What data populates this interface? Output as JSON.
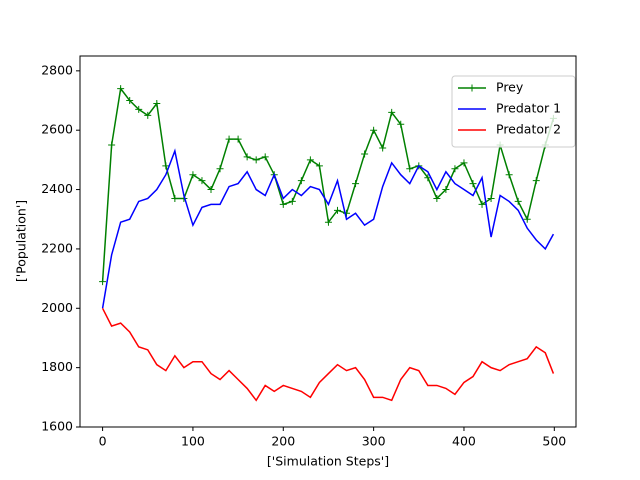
{
  "chart_data": {
    "type": "line",
    "x_label": "['Simulation Steps']",
    "y_label": "['Population']",
    "x": [
      0,
      10,
      20,
      30,
      40,
      50,
      60,
      70,
      80,
      90,
      100,
      110,
      120,
      130,
      140,
      150,
      160,
      170,
      180,
      190,
      200,
      210,
      220,
      230,
      240,
      250,
      260,
      270,
      280,
      290,
      300,
      310,
      320,
      330,
      340,
      350,
      360,
      370,
      380,
      390,
      400,
      410,
      420,
      430,
      440,
      450,
      460,
      470,
      480,
      490,
      499
    ],
    "series": [
      {
        "name": "Prey",
        "color": "#008000",
        "marker": "+",
        "values": [
          2090,
          2550,
          2740,
          2700,
          2670,
          2650,
          2690,
          2480,
          2370,
          2370,
          2450,
          2430,
          2400,
          2470,
          2570,
          2570,
          2510,
          2500,
          2510,
          2450,
          2350,
          2360,
          2430,
          2500,
          2480,
          2290,
          2330,
          2320,
          2420,
          2520,
          2600,
          2540,
          2660,
          2620,
          2470,
          2480,
          2440,
          2370,
          2400,
          2470,
          2490,
          2420,
          2350,
          2370,
          2550,
          2450,
          2360,
          2300,
          2430,
          2550,
          2640
        ]
      },
      {
        "name": "Predator 1",
        "color": "#0000ff",
        "values": [
          2000,
          2180,
          2290,
          2300,
          2360,
          2370,
          2400,
          2450,
          2530,
          2380,
          2280,
          2340,
          2350,
          2350,
          2410,
          2420,
          2460,
          2400,
          2380,
          2450,
          2370,
          2400,
          2380,
          2410,
          2400,
          2350,
          2430,
          2300,
          2320,
          2280,
          2300,
          2410,
          2490,
          2450,
          2420,
          2480,
          2460,
          2400,
          2460,
          2420,
          2400,
          2380,
          2440,
          2240,
          2380,
          2360,
          2330,
          2270,
          2230,
          2200,
          2250
        ]
      },
      {
        "name": "Predator 2",
        "color": "#ff0000",
        "values": [
          2000,
          1940,
          1950,
          1920,
          1870,
          1860,
          1810,
          1790,
          1840,
          1800,
          1820,
          1820,
          1780,
          1760,
          1790,
          1760,
          1730,
          1690,
          1740,
          1720,
          1740,
          1730,
          1720,
          1700,
          1750,
          1780,
          1810,
          1790,
          1800,
          1760,
          1700,
          1700,
          1690,
          1760,
          1800,
          1790,
          1740,
          1740,
          1730,
          1710,
          1750,
          1770,
          1820,
          1800,
          1790,
          1810,
          1820,
          1830,
          1870,
          1850,
          1780
        ]
      }
    ],
    "xlim": [
      -25,
      524
    ],
    "ylim": [
      1600,
      2850
    ],
    "xticks": [
      0,
      100,
      200,
      300,
      400,
      500
    ],
    "yticks": [
      1600,
      1800,
      2000,
      2200,
      2400,
      2600,
      2800
    ],
    "legend": "upper right",
    "grid": false
  }
}
